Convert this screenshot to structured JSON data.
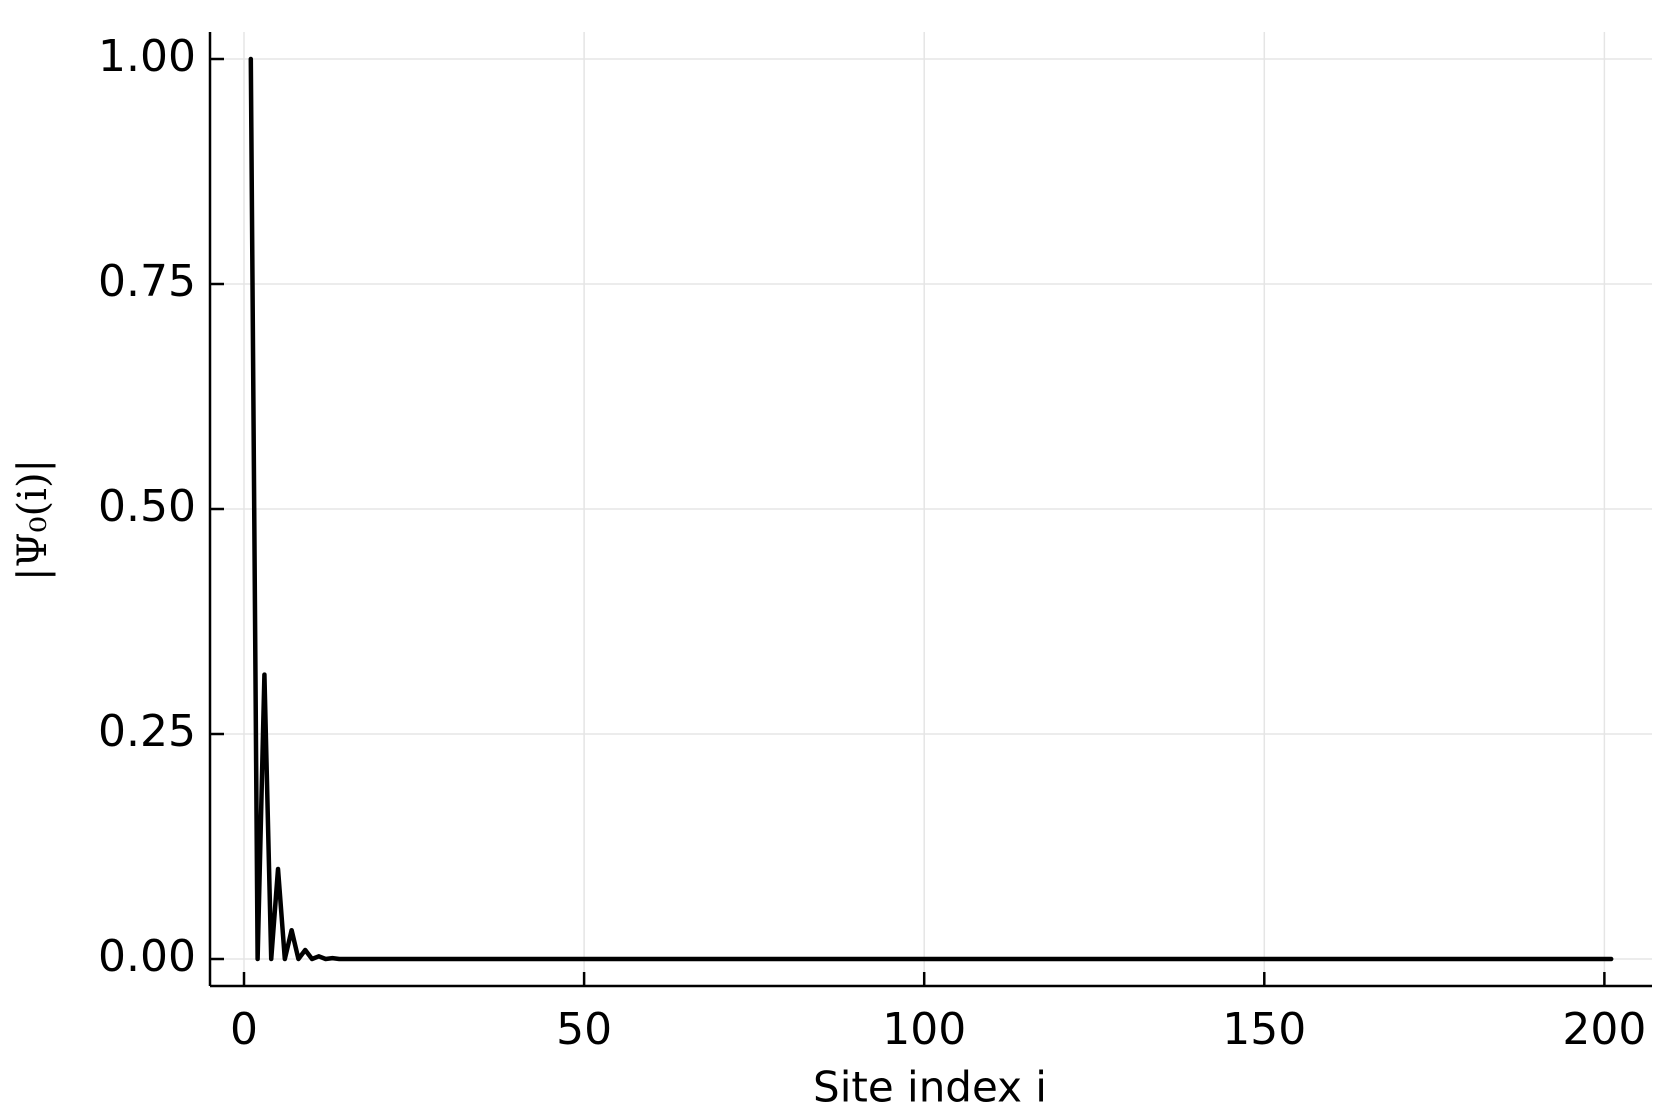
{
  "chart_data": {
    "type": "line",
    "x_label": "Site index i",
    "y_label": "|Ψ₀(i)|",
    "x": [
      1,
      2,
      3,
      4,
      5,
      6,
      7,
      8,
      9,
      10,
      11,
      12,
      13,
      14,
      15,
      16,
      201
    ],
    "series": [
      {
        "color": "#000000",
        "values": [
          1.0,
          0,
          0.316,
          0,
          0.1,
          0,
          0.032,
          0,
          0.01,
          0,
          0.003,
          0,
          0.001,
          0,
          0,
          0,
          0
        ]
      }
    ],
    "xlim": [
      -5,
      207
    ],
    "ylim": [
      -0.03,
      1.03
    ],
    "xticks": [
      0,
      50,
      100,
      150,
      200
    ],
    "yticks": [
      {
        "value": 0,
        "label": "0.00"
      },
      {
        "value": 0.25,
        "label": "0.25"
      },
      {
        "value": 0.5,
        "label": "0.50"
      },
      {
        "value": 0.75,
        "label": "0.75"
      },
      {
        "value": 1,
        "label": "1.00"
      }
    ],
    "grid": true
  }
}
